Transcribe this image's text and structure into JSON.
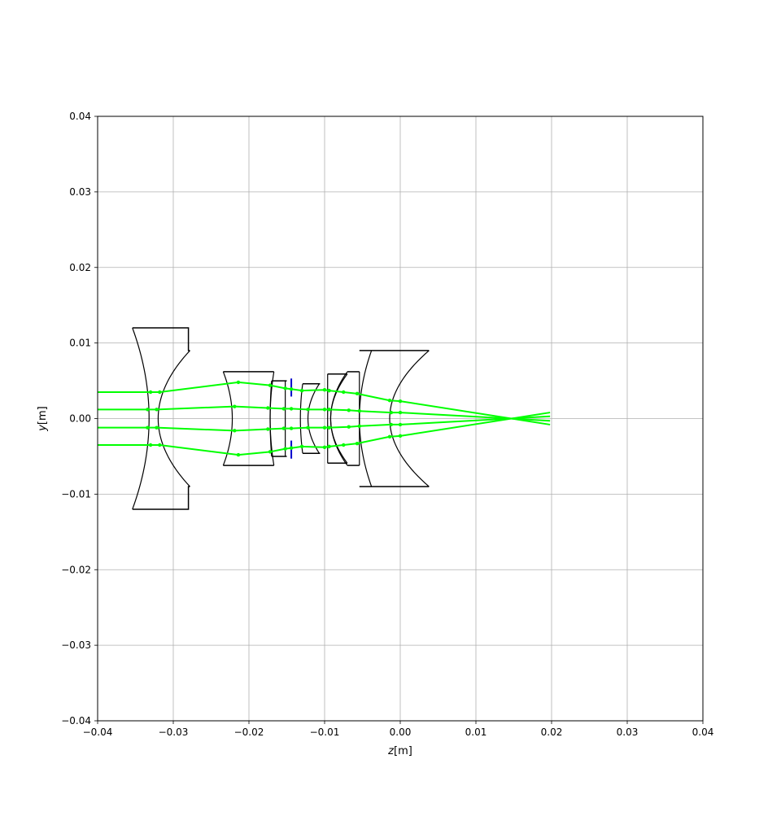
{
  "chart_data": {
    "type": "line",
    "title": "",
    "xlabel": "z[m]",
    "ylabel": "y[m]",
    "xlim": [
      -0.04,
      0.04
    ],
    "ylim": [
      -0.04,
      0.04
    ],
    "grid": true,
    "x_ticks": [
      -0.04,
      -0.03,
      -0.02,
      -0.01,
      0.0,
      0.01,
      0.02,
      0.03,
      0.04
    ],
    "y_ticks": [
      -0.04,
      -0.03,
      -0.02,
      -0.01,
      0.0,
      0.01,
      0.02,
      0.03,
      0.04
    ],
    "x_tick_labels": [
      "−0.04",
      "−0.03",
      "−0.02",
      "−0.01",
      "0.00",
      "0.01",
      "0.02",
      "0.03",
      "0.04"
    ],
    "y_tick_labels": [
      "−0.04",
      "−0.03",
      "−0.02",
      "−0.01",
      "0.00",
      "0.01",
      "0.02",
      "0.03",
      "0.04"
    ],
    "colors": {
      "rays": "#00ff00",
      "lens": "#000000",
      "stop": "#0000cc",
      "grid": "#b0b0b0"
    },
    "lenses": [
      {
        "front": {
          "z": -0.0332,
          "sag": -0.0022,
          "h": 0.012
        },
        "back": {
          "z": -0.032,
          "sag": 0.0042,
          "h": 0.009
        },
        "edge_z": -0.028
      },
      {
        "front": {
          "z": -0.0222,
          "sag": -0.0012,
          "h": 0.0062
        },
        "back": {
          "z": -0.0172,
          "sag": 0.0005,
          "h": 0.0062
        },
        "edge_z": -0.0178
      },
      {
        "front": {
          "z": -0.0172,
          "sag": 0.0002,
          "h": 0.005
        },
        "back": {
          "z": -0.0152,
          "sag": 0.0,
          "h": 0.005
        },
        "edge_z": -0.015
      },
      {
        "front": {
          "z": -0.0132,
          "sag": 0.0003,
          "h": 0.0046
        },
        "back": {
          "z": -0.0122,
          "sag": 0.0015,
          "h": 0.0046
        },
        "edge_z": -0.0106
      },
      {
        "front": {
          "z": -0.0096,
          "sag": 0.0,
          "h": 0.0059
        },
        "back": {
          "z": -0.0092,
          "sag": 0.0022,
          "h": 0.0059
        },
        "edge_z": -0.0092
      },
      {
        "front": {
          "z": -0.0092,
          "sag": 0.0022,
          "h": 0.0062
        },
        "back": {
          "z": -0.0054,
          "sag": 0.0,
          "h": 0.0062
        },
        "edge_z": -0.0064
      },
      {
        "front": {
          "z": -0.0054,
          "sag": 0.0016,
          "h": 0.009
        },
        "back": {
          "z": -0.0014,
          "sag": 0.0052,
          "h": 0.009
        },
        "edge_z": -0.0054
      }
    ],
    "stop": {
      "z": -0.0144,
      "h": 0.0053
    },
    "series": [
      {
        "x": [
          -0.04,
          -0.033,
          -0.0318,
          -0.0214,
          -0.0172,
          -0.0152,
          -0.0144,
          -0.013,
          -0.01,
          -0.0094,
          -0.0075,
          -0.0057,
          -0.0014,
          0.0,
          0.0198
        ],
        "y": [
          0.0035,
          0.0035,
          0.0035,
          0.0048,
          0.0044,
          0.004,
          0.0039,
          0.0037,
          0.0038,
          0.0037,
          0.0035,
          0.0033,
          0.0024,
          0.0023,
          -0.0008
        ]
      },
      {
        "x": [
          -0.04,
          -0.0334,
          -0.0322,
          -0.0219,
          -0.0175,
          -0.0154,
          -0.0144,
          -0.0122,
          -0.01,
          -0.0094,
          -0.0068,
          -0.0054,
          -0.0012,
          0.0,
          0.0198
        ],
        "y": [
          0.0012,
          0.0012,
          0.0012,
          0.0016,
          0.0014,
          0.0013,
          0.0013,
          0.0012,
          0.0012,
          0.0012,
          0.0011,
          0.001,
          0.0008,
          0.0008,
          -0.0003
        ]
      },
      {
        "x": [
          -0.04,
          -0.0334,
          -0.0322,
          -0.0219,
          -0.0175,
          -0.0154,
          -0.0144,
          -0.0122,
          -0.01,
          -0.0094,
          -0.0068,
          -0.0054,
          -0.0012,
          0.0,
          0.0198
        ],
        "y": [
          -0.0012,
          -0.0012,
          -0.0012,
          -0.0016,
          -0.0014,
          -0.0013,
          -0.0013,
          -0.0012,
          -0.0012,
          -0.0012,
          -0.0011,
          -0.001,
          -0.0008,
          -0.0008,
          0.0003
        ]
      },
      {
        "x": [
          -0.04,
          -0.033,
          -0.0318,
          -0.0214,
          -0.0172,
          -0.0152,
          -0.0144,
          -0.013,
          -0.01,
          -0.0094,
          -0.0075,
          -0.0057,
          -0.0014,
          0.0,
          0.0198
        ],
        "y": [
          -0.0035,
          -0.0035,
          -0.0035,
          -0.0048,
          -0.0044,
          -0.004,
          -0.0039,
          -0.0037,
          -0.0038,
          -0.0037,
          -0.0035,
          -0.0033,
          -0.0024,
          -0.0023,
          0.0008
        ]
      }
    ]
  }
}
